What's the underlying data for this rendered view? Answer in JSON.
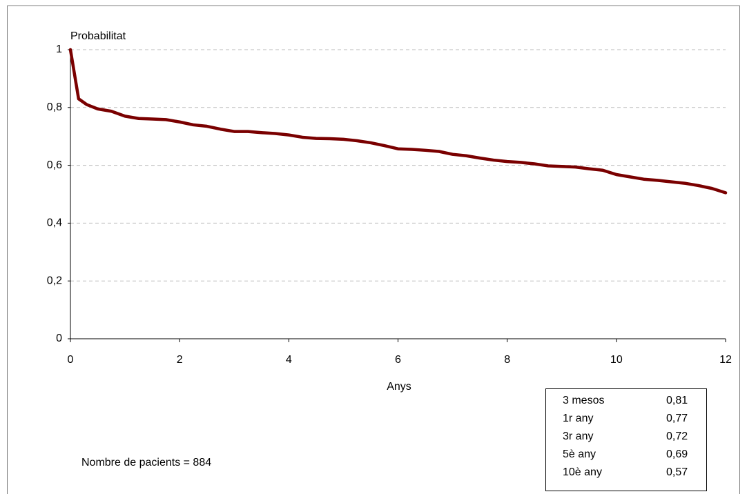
{
  "chart_data": {
    "type": "line",
    "y_label": "Probabilitat",
    "x_label": "Anys",
    "annotation": "Nombre de pacients = 884",
    "x": [
      0,
      0.15,
      0.3,
      0.5,
      0.75,
      1.0,
      1.25,
      1.5,
      1.75,
      2.0,
      2.25,
      2.5,
      2.75,
      3.0,
      3.25,
      3.5,
      3.75,
      4.0,
      4.25,
      4.5,
      4.75,
      5.0,
      5.25,
      5.5,
      5.75,
      6.0,
      6.25,
      6.5,
      6.75,
      7.0,
      7.25,
      7.5,
      7.75,
      8.0,
      8.25,
      8.5,
      8.75,
      9.0,
      9.25,
      9.5,
      9.75,
      10.0,
      10.25,
      10.5,
      10.75,
      11.0,
      11.25,
      11.5,
      11.75,
      12.0
    ],
    "values": [
      1.0,
      0.83,
      0.81,
      0.795,
      0.787,
      0.77,
      0.762,
      0.76,
      0.758,
      0.75,
      0.74,
      0.735,
      0.725,
      0.717,
      0.717,
      0.713,
      0.71,
      0.705,
      0.697,
      0.693,
      0.692,
      0.69,
      0.685,
      0.678,
      0.668,
      0.657,
      0.655,
      0.652,
      0.648,
      0.638,
      0.633,
      0.625,
      0.618,
      0.613,
      0.61,
      0.605,
      0.598,
      0.596,
      0.594,
      0.588,
      0.583,
      0.568,
      0.56,
      0.552,
      0.548,
      0.543,
      0.538,
      0.53,
      0.52,
      0.505
    ],
    "color": "#7a0000",
    "xlim": [
      0,
      12
    ],
    "ylim": [
      0,
      1
    ],
    "xticks": [
      0,
      2,
      4,
      6,
      8,
      10,
      12
    ],
    "yticks": [
      0,
      {
        "value": 0.2,
        "label": "0,2"
      },
      {
        "value": 0.4,
        "label": "0,4"
      },
      {
        "value": 0.6,
        "label": "0,6"
      },
      {
        "value": 0.8,
        "label": "0,8"
      },
      1
    ],
    "grid": true,
    "summary_table": [
      [
        "3 mesos",
        "0,81"
      ],
      [
        "1r any",
        "0,77"
      ],
      [
        "3r any",
        "0,72"
      ],
      [
        "5è any",
        "0,69"
      ],
      [
        "10è any",
        "0,57"
      ]
    ]
  }
}
